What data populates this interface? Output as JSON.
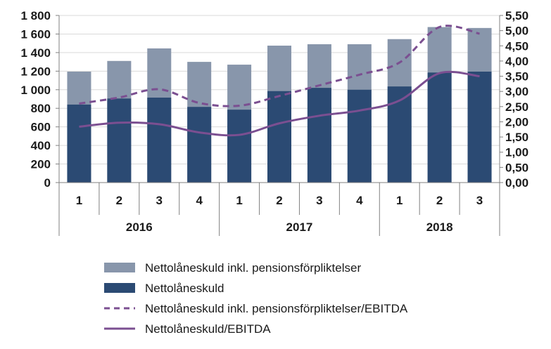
{
  "chart_data": {
    "type": "bar",
    "categories": [
      "1",
      "2",
      "3",
      "4",
      "1",
      "2",
      "3",
      "4",
      "1",
      "2",
      "3"
    ],
    "years": [
      {
        "label": "2016",
        "quarters": 4
      },
      {
        "label": "2017",
        "quarters": 4
      },
      {
        "label": "2018",
        "quarters": 3
      }
    ],
    "series": [
      {
        "name": "Nettolåneskuld",
        "kind": "bar",
        "axis": "left",
        "color": "#2b4a73",
        "values": [
          840,
          905,
          915,
          815,
          785,
          985,
          1020,
          1000,
          1035,
          1185,
          1195
        ]
      },
      {
        "name": "Nettolåneskuld inkl. pensionsförpliktelser",
        "kind": "bar",
        "axis": "left",
        "color": "#8896ab",
        "values": [
          1195,
          1310,
          1445,
          1300,
          1270,
          1475,
          1490,
          1490,
          1545,
          1675,
          1665
        ]
      },
      {
        "name": "Nettolåneskuld inkl. pensionsförpliktelser/EBITDA",
        "kind": "line",
        "style": "dashed",
        "axis": "right",
        "color": "#7b4f91",
        "values": [
          2.6,
          2.8,
          3.07,
          2.62,
          2.53,
          2.85,
          3.2,
          3.55,
          3.95,
          5.12,
          4.9
        ]
      },
      {
        "name": "Nettolåneskuld/EBITDA",
        "kind": "line",
        "style": "solid",
        "axis": "right",
        "color": "#7b4f91",
        "values": [
          1.84,
          1.97,
          1.92,
          1.65,
          1.57,
          1.95,
          2.2,
          2.37,
          2.7,
          3.6,
          3.5
        ]
      }
    ],
    "y_left": {
      "lim": [
        0,
        1800
      ],
      "ticks": [
        "0",
        "200",
        "400",
        "600",
        "800",
        "1 000",
        "1 200",
        "1 400",
        "1 600",
        "1 800"
      ]
    },
    "y_right": {
      "lim": [
        0,
        5.5
      ],
      "ticks": [
        "0,00",
        "0,50",
        "1,00",
        "1,50",
        "2,00",
        "2,50",
        "3,00",
        "3,50",
        "4,00",
        "4,50",
        "5,00",
        "5,50"
      ]
    },
    "grid": "horizontal",
    "legend": {
      "position": "bottom",
      "items": [
        {
          "label": "Nettolåneskuld inkl. pensionsförpliktelser",
          "swatch": "box",
          "color": "#8896ab"
        },
        {
          "label": "Nettolåneskuld",
          "swatch": "box",
          "color": "#2b4a73"
        },
        {
          "label": "Nettolåneskuld inkl. pensionsförpliktelser/EBITDA",
          "swatch": "dashed-line",
          "color": "#7b4f91"
        },
        {
          "label": "Nettolåneskuld/EBITDA",
          "swatch": "solid-line",
          "color": "#7b4f91"
        }
      ]
    }
  }
}
